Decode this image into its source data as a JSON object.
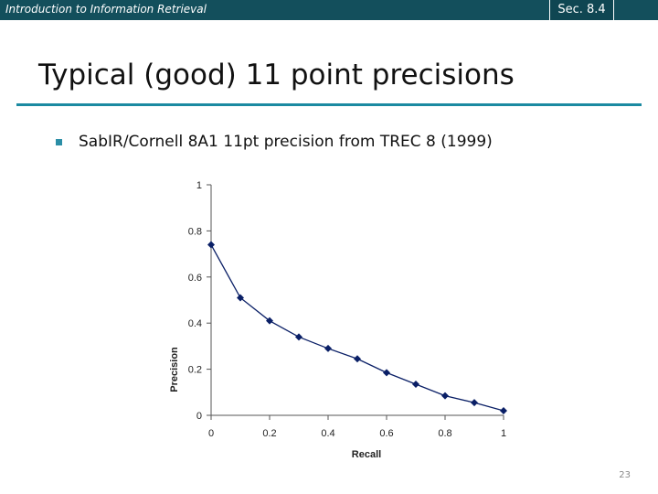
{
  "header": {
    "course": "Introduction to Information Retrieval",
    "section": "Sec. 8.4",
    "bar_color": "#134f5c"
  },
  "slide": {
    "title": "Typical (good) 11 point precisions",
    "bullet": "SabIR/Cornell 8A1 11pt precision from TREC 8 (1999)",
    "page_number": "23",
    "accent_color": "#1b8aa1"
  },
  "chart_data": {
    "type": "line",
    "x": [
      0,
      0.1,
      0.2,
      0.3,
      0.4,
      0.5,
      0.6,
      0.7,
      0.8,
      0.9,
      1
    ],
    "series": [
      {
        "values": [
          0.74,
          0.51,
          0.41,
          0.34,
          0.29,
          0.245,
          0.185,
          0.135,
          0.085,
          0.055,
          0.02
        ]
      }
    ],
    "xlabel": "Recall",
    "ylabel": "Precision",
    "xlim": [
      0,
      1
    ],
    "ylim": [
      0,
      1
    ],
    "x_ticks": [
      "0",
      "0.2",
      "0.4",
      "0.6",
      "0.8",
      "1"
    ],
    "y_ticks": [
      "0",
      "0.2",
      "0.4",
      "0.6",
      "0.8",
      "1"
    ],
    "grid": false,
    "marker": "diamond",
    "line_color": "#0a1f66"
  }
}
